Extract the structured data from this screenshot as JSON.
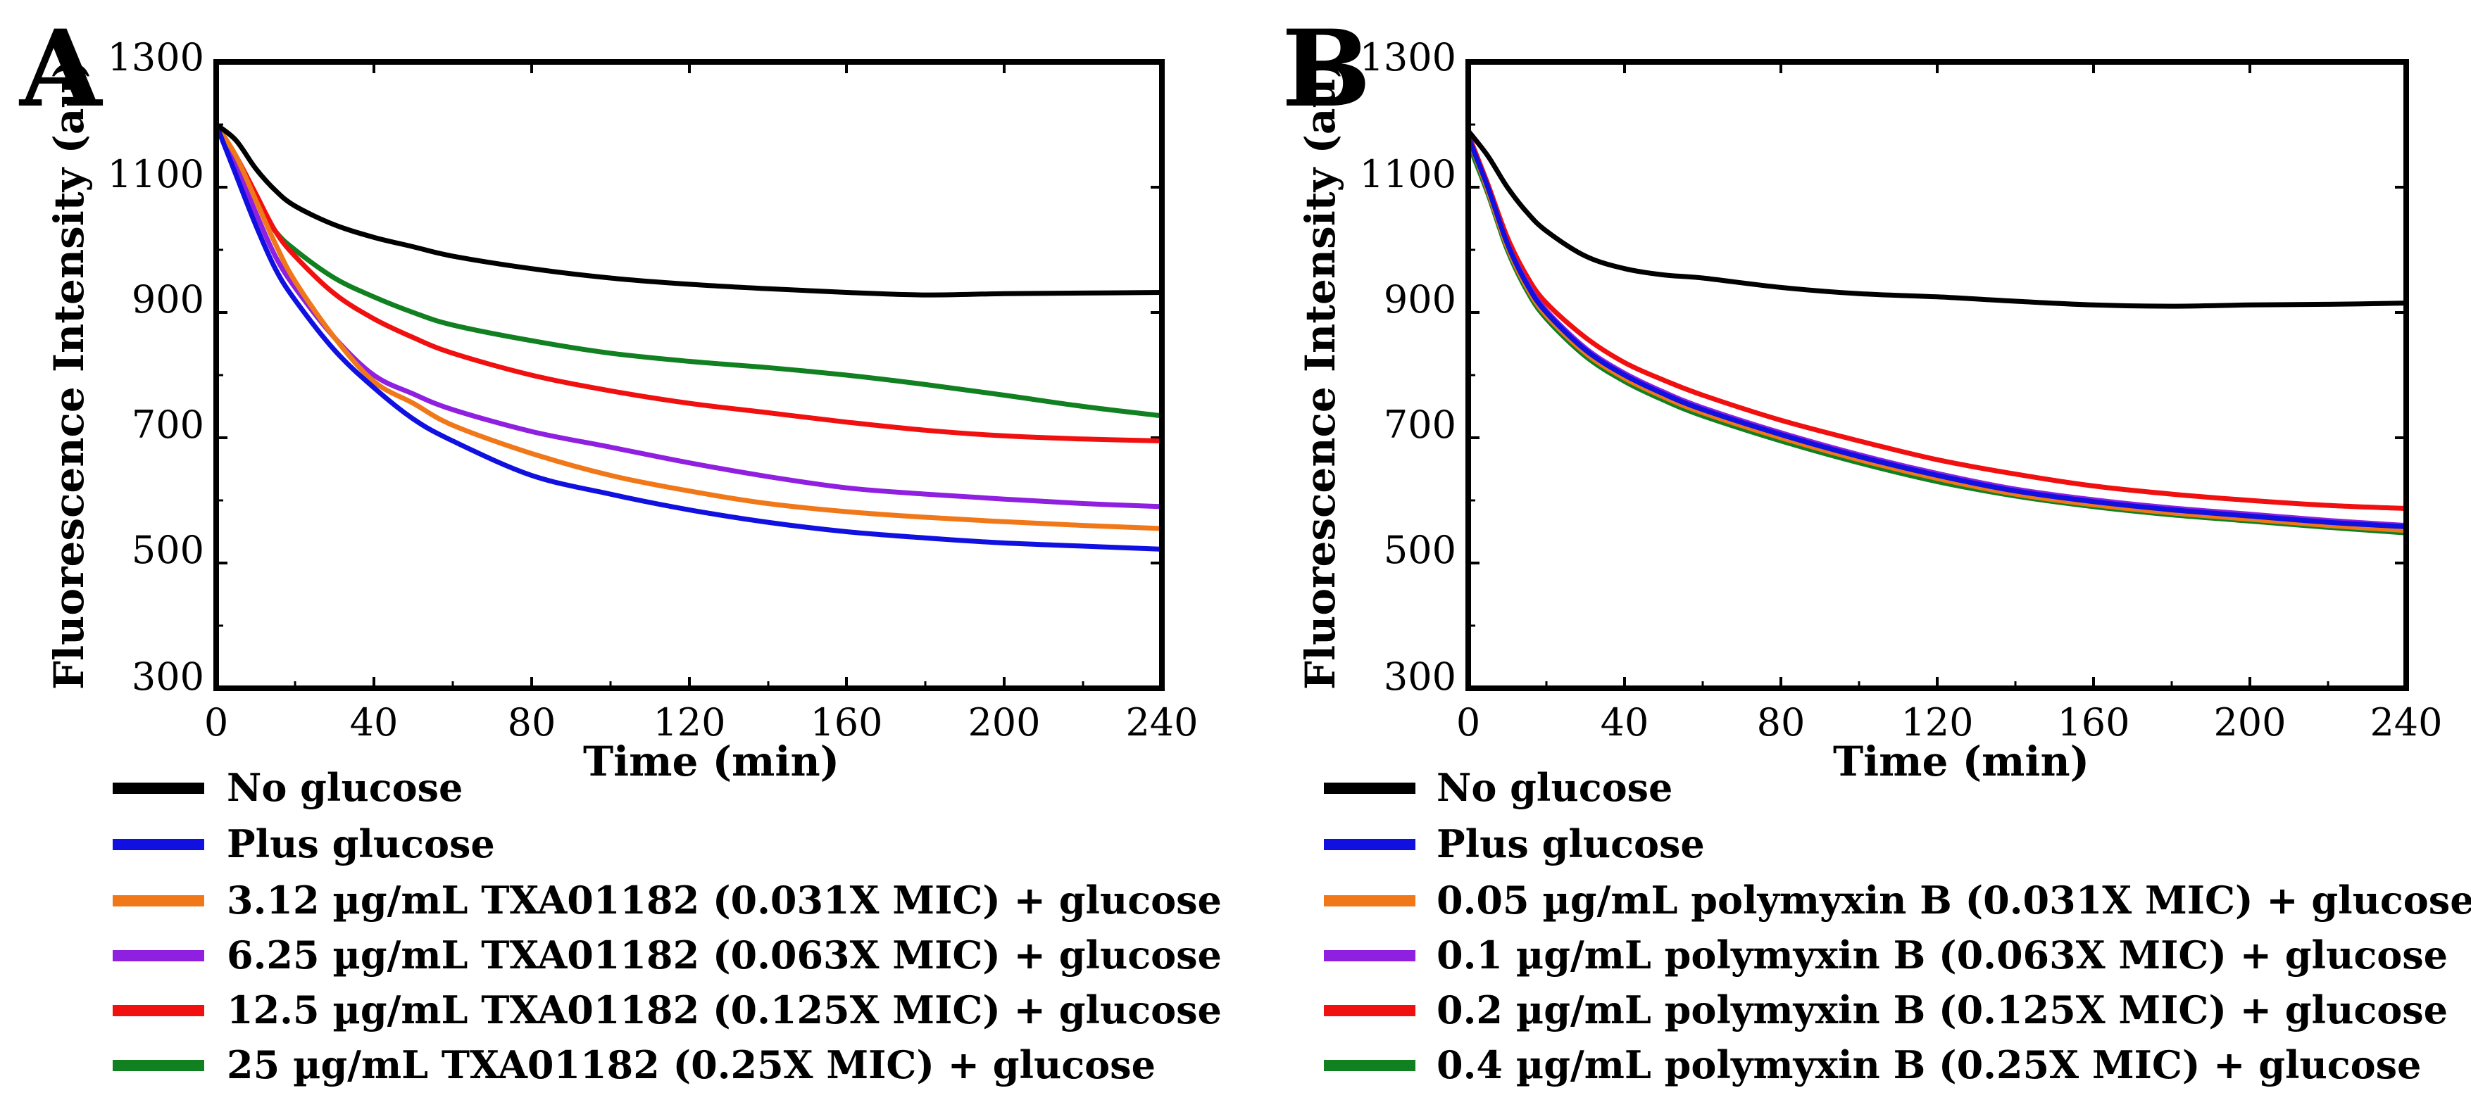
{
  "chart_data": [
    {
      "type": "line",
      "panel_label": "A",
      "xlabel": "Time (min)",
      "ylabel": "Fluorescence Intensity (au)",
      "xlim": [
        0,
        240
      ],
      "ylim": [
        300,
        1300
      ],
      "x_ticks": [
        "0",
        "40",
        "80",
        "120",
        "160",
        "200",
        "240"
      ],
      "y_ticks": [
        "300",
        "500",
        "700",
        "900",
        "1100",
        "1300"
      ],
      "series": [
        {
          "name": "No glucose",
          "color": "#000000",
          "x": [
            0,
            5,
            10,
            15,
            20,
            30,
            40,
            50,
            60,
            80,
            100,
            120,
            140,
            160,
            180,
            200,
            220,
            240
          ],
          "y": [
            1200,
            1175,
            1130,
            1095,
            1070,
            1040,
            1020,
            1005,
            990,
            970,
            955,
            945,
            938,
            932,
            928,
            930,
            931,
            932
          ]
        },
        {
          "name": "Plus glucose",
          "color": "#1010e0",
          "x": [
            0,
            5,
            10,
            15,
            20,
            30,
            40,
            50,
            60,
            80,
            100,
            120,
            140,
            160,
            180,
            200,
            220,
            240
          ],
          "y": [
            1200,
            1120,
            1040,
            970,
            920,
            840,
            780,
            730,
            695,
            640,
            610,
            585,
            565,
            550,
            540,
            532,
            527,
            522
          ]
        },
        {
          "name": "3.12 µg/mL TXA01182 (0.031X MIC) + glucose",
          "color": "#f07818",
          "x": [
            0,
            5,
            10,
            15,
            20,
            30,
            40,
            50,
            60,
            80,
            100,
            120,
            140,
            160,
            180,
            200,
            220,
            240
          ],
          "y": [
            1200,
            1150,
            1080,
            1010,
            950,
            860,
            790,
            755,
            720,
            675,
            640,
            615,
            595,
            582,
            573,
            566,
            560,
            555
          ]
        },
        {
          "name": "6.25 µg/mL TXA01182 (0.063X MIC) + glucose",
          "color": "#9020e0",
          "x": [
            0,
            5,
            10,
            15,
            20,
            30,
            40,
            50,
            60,
            80,
            100,
            120,
            140,
            160,
            180,
            200,
            220,
            240
          ],
          "y": [
            1200,
            1135,
            1060,
            990,
            940,
            860,
            800,
            770,
            745,
            710,
            685,
            660,
            638,
            620,
            610,
            602,
            595,
            590
          ]
        },
        {
          "name": "12.5 µg/mL TXA01182 (0.125X MIC) + glucose",
          "color": "#f01010",
          "x": [
            0,
            5,
            10,
            15,
            20,
            30,
            40,
            50,
            60,
            80,
            100,
            120,
            140,
            160,
            180,
            200,
            220,
            240
          ],
          "y": [
            1200,
            1150,
            1090,
            1030,
            990,
            930,
            890,
            860,
            835,
            800,
            775,
            755,
            740,
            725,
            712,
            703,
            698,
            695
          ]
        },
        {
          "name": "25 µg/mL TXA01182 (0.25X MIC) + glucose",
          "color": "#108020",
          "x": [
            0,
            5,
            10,
            15,
            20,
            30,
            40,
            50,
            60,
            80,
            100,
            120,
            140,
            160,
            180,
            200,
            220,
            240
          ],
          "y": [
            1200,
            1140,
            1080,
            1030,
            1000,
            955,
            925,
            900,
            880,
            855,
            835,
            822,
            812,
            800,
            785,
            768,
            750,
            735
          ]
        }
      ]
    },
    {
      "type": "line",
      "panel_label": "B",
      "xlabel": "Time (min)",
      "ylabel": "Fluorescence Intensity (au)",
      "xlim": [
        0,
        240
      ],
      "ylim": [
        300,
        1300
      ],
      "x_ticks": [
        "0",
        "40",
        "80",
        "120",
        "160",
        "200",
        "240"
      ],
      "y_ticks": [
        "300",
        "500",
        "700",
        "900",
        "1100",
        "1300"
      ],
      "series": [
        {
          "name": "No glucose",
          "color": "#000000",
          "x": [
            0,
            5,
            10,
            15,
            20,
            30,
            40,
            50,
            60,
            80,
            100,
            120,
            140,
            160,
            180,
            200,
            220,
            240
          ],
          "y": [
            1190,
            1150,
            1100,
            1060,
            1030,
            990,
            970,
            960,
            955,
            940,
            930,
            925,
            918,
            912,
            910,
            912,
            913,
            915
          ]
        },
        {
          "name": "Plus glucose",
          "color": "#1010e0",
          "x": [
            0,
            5,
            10,
            15,
            20,
            30,
            40,
            50,
            60,
            80,
            100,
            120,
            140,
            160,
            180,
            200,
            220,
            240
          ],
          "y": [
            1180,
            1100,
            1010,
            945,
            900,
            840,
            800,
            770,
            745,
            705,
            670,
            640,
            615,
            598,
            585,
            575,
            565,
            558
          ]
        },
        {
          "name": "0.05 µg/mL polymyxin B (0.031X MIC) + glucose",
          "color": "#f07818",
          "x": [
            0,
            5,
            10,
            15,
            20,
            30,
            40,
            50,
            60,
            80,
            100,
            120,
            140,
            160,
            180,
            200,
            220,
            240
          ],
          "y": [
            1180,
            1095,
            1005,
            940,
            895,
            835,
            795,
            765,
            740,
            700,
            665,
            635,
            610,
            593,
            580,
            570,
            560,
            552
          ]
        },
        {
          "name": "0.1 µg/mL polymyxin B (0.063X MIC) + glucose",
          "color": "#9020e0",
          "x": [
            0,
            5,
            10,
            15,
            20,
            30,
            40,
            50,
            60,
            80,
            100,
            120,
            140,
            160,
            180,
            200,
            220,
            240
          ],
          "y": [
            1180,
            1100,
            1010,
            948,
            903,
            843,
            803,
            773,
            748,
            708,
            673,
            643,
            618,
            601,
            588,
            578,
            568,
            560
          ]
        },
        {
          "name": "0.2 µg/mL polymyxin B (0.125X MIC) + glucose",
          "color": "#f01010",
          "x": [
            0,
            5,
            10,
            15,
            20,
            30,
            40,
            50,
            60,
            80,
            100,
            120,
            140,
            160,
            180,
            200,
            220,
            240
          ],
          "y": [
            1185,
            1105,
            1020,
            958,
            915,
            860,
            820,
            792,
            768,
            728,
            695,
            665,
            642,
            623,
            610,
            600,
            592,
            587
          ]
        },
        {
          "name": "0.4 µg/mL polymyxin B (0.25X MIC) + glucose",
          "color": "#108020",
          "x": [
            0,
            5,
            10,
            15,
            20,
            30,
            40,
            50,
            60,
            80,
            100,
            120,
            140,
            160,
            180,
            200,
            220,
            240
          ],
          "y": [
            1170,
            1090,
            1000,
            935,
            890,
            830,
            790,
            760,
            735,
            695,
            660,
            630,
            607,
            590,
            577,
            567,
            557,
            548
          ]
        }
      ]
    }
  ]
}
